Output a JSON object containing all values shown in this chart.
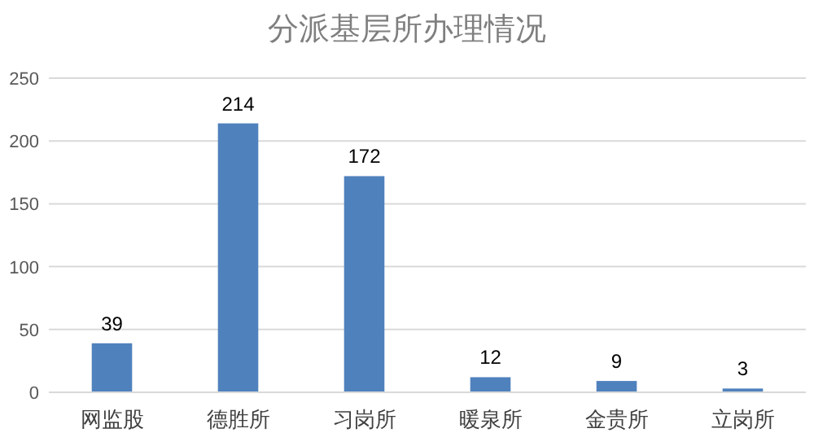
{
  "chart_data": {
    "type": "bar",
    "title": "分派基层所办理情况",
    "categories": [
      "网监股",
      "德胜所",
      "习岗所",
      "暖泉所",
      "金贵所",
      "立岗所"
    ],
    "values": [
      39,
      214,
      172,
      12,
      9,
      3
    ],
    "color": "#4f81bd",
    "ylim": [
      0,
      250
    ],
    "yticks": [
      0,
      50,
      100,
      150,
      200,
      250
    ],
    "grid": "y",
    "data_labels": true
  }
}
